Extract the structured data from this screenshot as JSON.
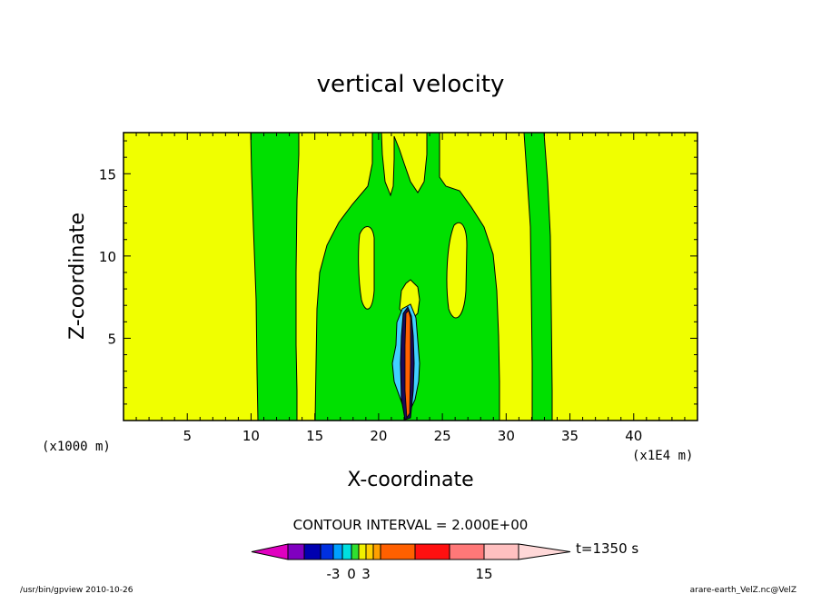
{
  "chart_data": {
    "type": "contour",
    "title": "vertical velocity",
    "xlabel": "X-coordinate",
    "ylabel": "Z-coordinate",
    "x_ticks": [
      5,
      10,
      15,
      20,
      25,
      30,
      35,
      40
    ],
    "y_ticks": [
      5,
      10,
      15
    ],
    "xlim": [
      0,
      45
    ],
    "ylim": [
      0,
      17.5
    ],
    "x_scale_left": "(x1000 m)",
    "x_scale_right": "(x1E4 m)",
    "contour_interval": "CONTOUR INTERVAL = 2.000E+00",
    "time_label": "t=1350 s",
    "colorbar": {
      "tick_labels": [
        {
          "value": -3,
          "text": "-3"
        },
        {
          "value": 0,
          "text": "0"
        },
        {
          "value": 3,
          "text": "3"
        },
        {
          "value": 15,
          "text": "15"
        }
      ],
      "colors": [
        "#e000c0",
        "#8000c0",
        "#0000b0",
        "#0030e0",
        "#00a0ff",
        "#00e0e0",
        "#30e030",
        "#f0f000",
        "#ffd000",
        "#ffa000",
        "#ff6000",
        "#ff1010",
        "#ff7878",
        "#ffc0c0",
        "#ffd8d8"
      ]
    },
    "field_colors": {
      "background": "#f0ff00",
      "positive": "#00e000",
      "negative_light": "#40d0ff",
      "negative_dark": "#1a0a5a",
      "strong_positive": "#ff6000"
    }
  },
  "footer": {
    "left": "/usr/bin/gpview   2010-10-26",
    "right": "arare-earth_VelZ.nc@VelZ"
  }
}
